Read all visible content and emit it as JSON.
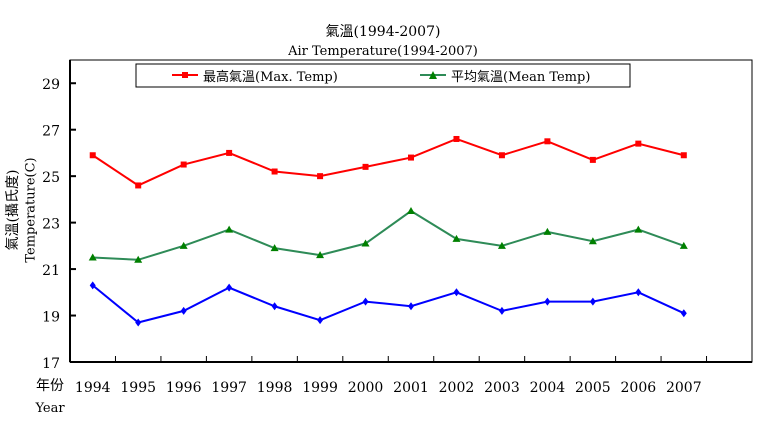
{
  "chart_data": {
    "type": "line",
    "title": "氣溫(1994-2007)",
    "subtitle": "Air Temperature(1994-2007)",
    "ylabel_zh": "氣溫(攝氏度)",
    "ylabel_en": "Temperature(C)",
    "xlabel_zh": "年份",
    "xlabel_en": "Year",
    "ylim": [
      17,
      30
    ],
    "yticks": [
      17,
      19,
      21,
      23,
      25,
      27,
      29
    ],
    "grid": false,
    "legend_position": "top",
    "categories": [
      "1994",
      "1995",
      "1996",
      "1997",
      "1998",
      "1999",
      "2000",
      "2001",
      "2002",
      "2003",
      "2004",
      "2005",
      "2006",
      "2007"
    ],
    "series": [
      {
        "name": "最高氣溫(Max. Temp)",
        "color": "#ff0000",
        "marker": "square",
        "values": [
          25.9,
          24.6,
          25.5,
          26.0,
          25.2,
          25.0,
          25.4,
          25.8,
          26.6,
          25.9,
          26.5,
          25.7,
          26.4,
          25.9
        ]
      },
      {
        "name": "平均氣溫(Mean Temp)",
        "color": "#2e8b57",
        "marker": "triangle",
        "values": [
          21.5,
          21.4,
          22.0,
          22.7,
          21.9,
          21.6,
          22.1,
          23.5,
          22.3,
          22.0,
          22.6,
          22.2,
          22.7,
          22.0
        ]
      },
      {
        "color": "#0000ff",
        "marker": "diamond",
        "values": [
          20.3,
          18.7,
          19.2,
          20.2,
          19.4,
          18.8,
          19.6,
          19.4,
          20.0,
          19.2,
          19.6,
          19.6,
          20.0,
          19.1
        ]
      }
    ]
  }
}
